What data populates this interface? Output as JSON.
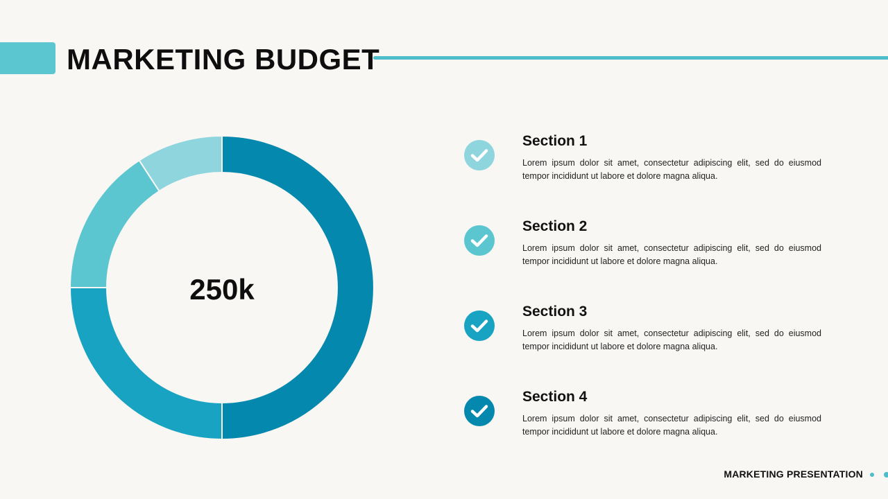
{
  "header": {
    "title": "MARKETING BUDGET"
  },
  "chart_data": {
    "type": "pie",
    "center_label": "250k",
    "slices": [
      {
        "value": 0.5,
        "color": "#0588ad"
      },
      {
        "value": 0.25,
        "color": "#17a3c1"
      },
      {
        "value": 0.1583,
        "color": "#5bc6d0"
      },
      {
        "value": 0.0917,
        "color": "#8fd5de"
      }
    ]
  },
  "sections": [
    {
      "title": "Section 1",
      "body": "Lorem ipsum dolor sit amet, consectetur adipiscing elit, sed do eiusmod tempor incididunt ut labore et dolore magna aliqua.",
      "color": "#8fd5de"
    },
    {
      "title": "Section 2",
      "body": "Lorem ipsum dolor sit amet, consectetur adipiscing elit, sed do eiusmod tempor incididunt ut labore et dolore magna aliqua.",
      "color": "#5bc6d0"
    },
    {
      "title": "Section 3",
      "body": "Lorem ipsum dolor sit amet, consectetur adipiscing elit, sed do eiusmod tempor incididunt ut labore et dolore magna aliqua.",
      "color": "#17a3c1"
    },
    {
      "title": "Section 4",
      "body": "Lorem ipsum dolor sit amet, consectetur adipiscing elit, sed do eiusmod tempor incididunt ut labore et dolore magna aliqua.",
      "color": "#0588ad"
    }
  ],
  "footer": {
    "text": "MARKETING PRESENTATION",
    "accent_color": "#4dbdc9"
  }
}
